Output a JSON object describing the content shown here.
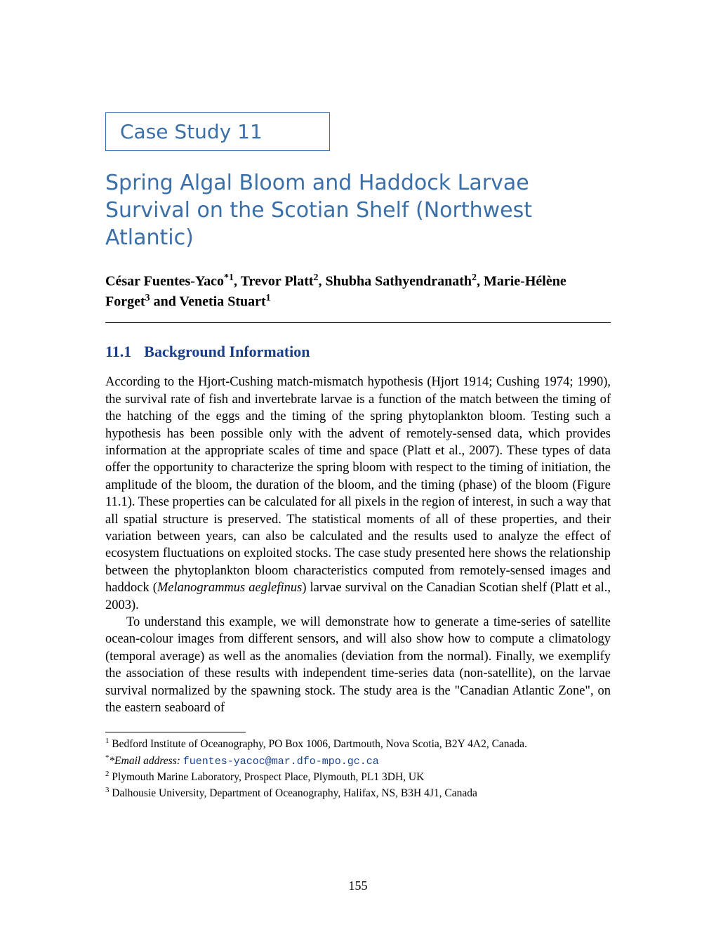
{
  "case_box": "Case Study 11",
  "title": "Spring Algal Bloom and Haddock Larvae Survival on the Scotian Shelf (Northwest Atlantic)",
  "authors_html": "César Fuentes-Yaco<span class='sup'>*1</span>, Trevor Platt<span class='sup'>2</span>, Shubha Sathyendranath<span class='sup'>2</span>, Marie-Hélène Forget<span class='sup'>3</span> and Venetia Stuart<span class='sup'>1</span>",
  "section_num": "11.1",
  "section_title": "Background Information",
  "para1_html": "According to the Hjort-Cushing match-mismatch hypothesis (Hjort 1914; Cushing 1974; 1990), the survival rate of fish and invertebrate larvae is a function of the match between the timing of the hatching of the eggs and the timing of the spring phytoplankton bloom. Testing such a hypothesis has been possible only with the advent of remotely-sensed data, which provides information at the appropriate scales of time and space (Platt et al., 2007). These types of data offer the opportunity to characterize the spring bloom with respect to the timing of initiation, the amplitude of the bloom, the duration of the bloom, and the timing (phase) of the bloom (Figure 11.1). These properties can be calculated for all pixels in the region of interest, in such a way that all spatial structure is preserved. The statistical moments of all of these properties, and their variation between years, can also be calculated and the results used to analyze the effect of ecosystem fluctuations on exploited stocks. The case study presented here shows the relationship between the phytoplankton bloom characteristics computed from remotely-sensed images and haddock (<span class='italic'>Melanogrammus aeglefinus</span>) larvae survival on the Canadian Scotian shelf (Platt et al., 2003).",
  "para2_html": "<span class='indent'></span>To understand this example, we will demonstrate how to generate a time-series of satellite ocean-colour images from different sensors, and will also show how to compute a climatology (temporal average) as well as the anomalies (deviation from the normal). Finally, we exemplify the association of these results with independent time-series data (non-satellite), on the larvae survival normalized by the spawning stock. The study area is the \"Canadian Atlantic Zone\", on the eastern seaboard of",
  "footnotes": {
    "f1": "Bedford Institute of Oceanography, PO Box 1006, Dartmouth, Nova Scotia, B2Y 4A2, Canada.",
    "email_label": "*Email address: ",
    "email": "fuentes-yacoc@mar.dfo-mpo.gc.ca",
    "f2": "Plymouth Marine Laboratory, Prospect Place, Plymouth, PL1 3DH, UK",
    "f3": "Dalhousie University, Department of Oceanography, Halifax, NS, B3H 4J1, Canada"
  },
  "page_number": "155",
  "colors": {
    "heading_blue": "#3a6fa8",
    "section_blue": "#1a3f8a",
    "text": "#000000",
    "background": "#ffffff"
  }
}
